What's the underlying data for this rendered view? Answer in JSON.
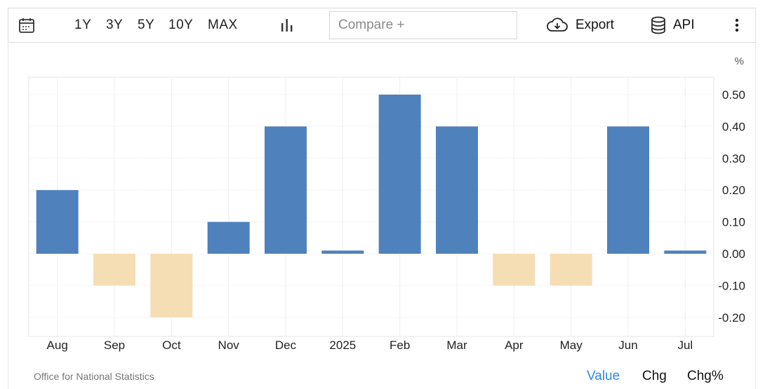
{
  "toolbar": {
    "ranges": [
      "1Y",
      "3Y",
      "5Y",
      "10Y",
      "MAX"
    ],
    "compare_placeholder": "Compare +",
    "export_label": "Export",
    "api_label": "API"
  },
  "chart_data": {
    "type": "bar",
    "categories": [
      "Aug",
      "Sep",
      "Oct",
      "Nov",
      "Dec",
      "2025",
      "Feb",
      "Mar",
      "Apr",
      "May",
      "Jun",
      "Jul"
    ],
    "values": [
      0.2,
      -0.1,
      -0.2,
      0.1,
      0.4,
      0.01,
      0.5,
      0.4,
      -0.1,
      -0.1,
      0.4,
      0.01
    ],
    "unit_label": "%",
    "ylim": [
      -0.2,
      0.5
    ],
    "yticks": [
      "0.50",
      "0.40",
      "0.30",
      "0.20",
      "0.10",
      "0.00",
      "-0.10",
      "-0.20"
    ],
    "ytick_values": [
      0.5,
      0.4,
      0.3,
      0.2,
      0.1,
      0.0,
      -0.1,
      -0.2
    ],
    "grid": true,
    "colors": {
      "positive": "#4f81bd",
      "negative": "#f5deb3"
    }
  },
  "footer": {
    "source": "Office for National Statistics",
    "modes": [
      "Value",
      "Chg",
      "Chg%"
    ],
    "active_mode": "Value",
    "active_color": "#2f8ae0"
  }
}
